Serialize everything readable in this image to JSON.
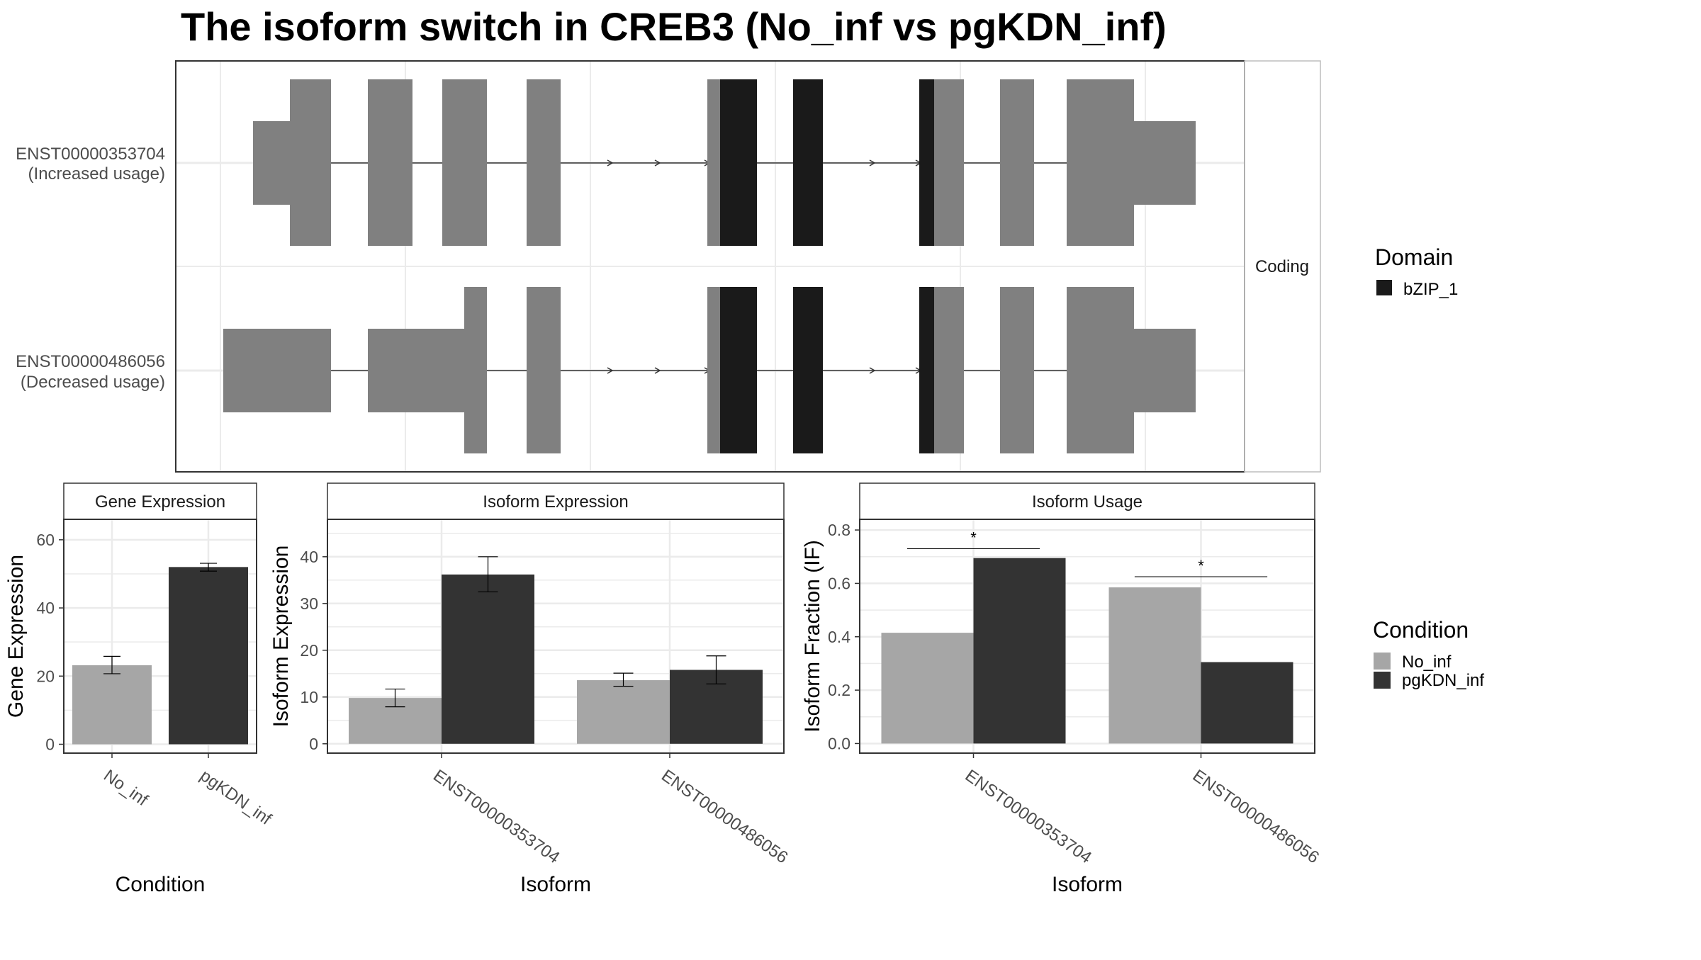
{
  "title": "The isoform switch in CREB3 (No_inf vs pgKDN_inf)",
  "colors": {
    "exon": "#808080",
    "domain": "#1a1a1a",
    "no_inf": "#a6a6a6",
    "pgkdn_inf": "#333333",
    "grid": "#ebebeb",
    "axis_text": "#4d4d4d"
  },
  "chart_data": [
    {
      "type": "gene-structure",
      "strip_label": "Coding",
      "transcripts": [
        {
          "id": "ENST00000353704",
          "usage": "(Increased usage)"
        },
        {
          "id": "ENST00000486056",
          "usage": "(Decreased usage)"
        }
      ],
      "legend": {
        "title": "Domain",
        "entries": [
          "bZIP_1"
        ]
      }
    },
    {
      "type": "bar",
      "panel_title": "Gene Expression",
      "xlabel": "Condition",
      "ylabel": "Gene Expression",
      "categories": [
        "No_inf",
        "pgKDN_inf"
      ],
      "values": [
        23.2,
        52.0
      ],
      "errors": [
        [
          20.7,
          25.8
        ],
        [
          50.8,
          53.1
        ]
      ],
      "ylim": [
        -2.6,
        66
      ],
      "yticks": [
        0,
        20,
        40,
        60
      ]
    },
    {
      "type": "bar",
      "panel_title": "Isoform Expression",
      "xlabel": "Isoform",
      "ylabel": "Isoform Expression",
      "categories": [
        "ENST00000353704",
        "ENST00000486056"
      ],
      "series": [
        {
          "name": "No_inf",
          "values": [
            9.8,
            13.6
          ],
          "errors": [
            [
              7.9,
              11.7
            ],
            [
              12.3,
              15.1
            ]
          ]
        },
        {
          "name": "pgKDN_inf",
          "values": [
            36.2,
            15.8
          ],
          "errors": [
            [
              32.5,
              40.0
            ],
            [
              12.8,
              18.8
            ]
          ]
        }
      ],
      "ylim": [
        -2.0,
        48
      ],
      "yticks": [
        0,
        10,
        20,
        30,
        40
      ]
    },
    {
      "type": "bar",
      "panel_title": "Isoform Usage",
      "xlabel": "Isoform",
      "ylabel": "Isoform Fraction (IF)",
      "categories": [
        "ENST00000353704",
        "ENST00000486056"
      ],
      "series": [
        {
          "name": "No_inf",
          "values": [
            0.415,
            0.585
          ]
        },
        {
          "name": "pgKDN_inf",
          "values": [
            0.695,
            0.305
          ]
        }
      ],
      "significance": [
        {
          "category": "ENST00000353704",
          "y": 0.73,
          "label": "*"
        },
        {
          "category": "ENST00000486056",
          "y": 0.625,
          "label": "*"
        }
      ],
      "ylim": [
        -0.036,
        0.84
      ],
      "yticks": [
        0.0,
        0.2,
        0.4,
        0.6,
        0.8
      ],
      "ytick_labels": [
        "0.0",
        "0.2",
        "0.4",
        "0.6",
        "0.8"
      ]
    }
  ],
  "condition_legend": {
    "title": "Condition",
    "entries": [
      "No_inf",
      "pgKDN_inf"
    ]
  }
}
